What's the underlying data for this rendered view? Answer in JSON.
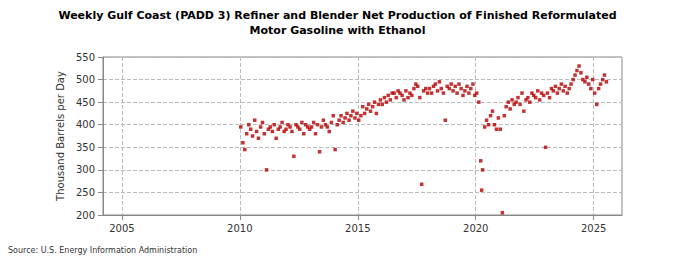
{
  "chart_data": {
    "type": "scatter",
    "title": "Weekly Gulf Coast (PADD 3) Refiner and Blender Net Production of Finished Reformulated\nMotor Gasoline with Ethanol",
    "y_label": "Thousand Barrels per Day",
    "annotation": "Source: U.S. Energy Information Administration",
    "color": "#b40000",
    "marker": "square",
    "grid": true,
    "xlim": [
      2004.2,
      2026.2
    ],
    "xticks": [
      2005,
      2010,
      2015,
      2020,
      2025
    ],
    "ylim": [
      200,
      550
    ],
    "yticks": [
      200,
      250,
      300,
      350,
      400,
      450,
      500,
      550
    ],
    "x": [
      2010.04,
      2010.13,
      2010.21,
      2010.29,
      2010.38,
      2010.46,
      2010.54,
      2010.63,
      2010.71,
      2010.79,
      2010.88,
      2010.96,
      2011.04,
      2011.13,
      2011.21,
      2011.29,
      2011.38,
      2011.46,
      2011.54,
      2011.63,
      2011.71,
      2011.79,
      2011.88,
      2011.96,
      2012.04,
      2012.13,
      2012.21,
      2012.29,
      2012.38,
      2012.46,
      2012.54,
      2012.63,
      2012.71,
      2012.79,
      2012.88,
      2012.96,
      2013.04,
      2013.13,
      2013.21,
      2013.29,
      2013.38,
      2013.46,
      2013.54,
      2013.63,
      2013.71,
      2013.79,
      2013.88,
      2013.96,
      2014.04,
      2014.13,
      2014.21,
      2014.29,
      2014.38,
      2014.46,
      2014.54,
      2014.63,
      2014.71,
      2014.79,
      2014.88,
      2014.96,
      2015.04,
      2015.13,
      2015.21,
      2015.29,
      2015.38,
      2015.46,
      2015.54,
      2015.63,
      2015.71,
      2015.79,
      2015.88,
      2015.96,
      2016.04,
      2016.13,
      2016.21,
      2016.29,
      2016.38,
      2016.46,
      2016.54,
      2016.63,
      2016.71,
      2016.79,
      2016.88,
      2016.96,
      2017.04,
      2017.13,
      2017.21,
      2017.29,
      2017.38,
      2017.46,
      2017.54,
      2017.63,
      2017.71,
      2017.79,
      2017.88,
      2017.96,
      2018.04,
      2018.13,
      2018.21,
      2018.29,
      2018.38,
      2018.46,
      2018.54,
      2018.63,
      2018.71,
      2018.79,
      2018.88,
      2018.96,
      2019.04,
      2019.13,
      2019.21,
      2019.29,
      2019.38,
      2019.46,
      2019.54,
      2019.63,
      2019.71,
      2019.79,
      2019.88,
      2019.96,
      2020.04,
      2020.13,
      2020.21,
      2020.25,
      2020.29,
      2020.38,
      2020.46,
      2020.54,
      2020.63,
      2020.71,
      2020.79,
      2020.88,
      2020.96,
      2021.04,
      2021.13,
      2021.21,
      2021.29,
      2021.38,
      2021.46,
      2021.54,
      2021.63,
      2021.71,
      2021.79,
      2021.88,
      2021.96,
      2022.04,
      2022.13,
      2022.21,
      2022.29,
      2022.38,
      2022.46,
      2022.54,
      2022.63,
      2022.71,
      2022.79,
      2022.88,
      2022.96,
      2023.04,
      2023.13,
      2023.21,
      2023.29,
      2023.38,
      2023.46,
      2023.54,
      2023.63,
      2023.71,
      2023.79,
      2023.88,
      2023.96,
      2024.04,
      2024.13,
      2024.21,
      2024.29,
      2024.38,
      2024.46,
      2024.54,
      2024.63,
      2024.71,
      2024.79,
      2024.88,
      2024.96,
      2025.04,
      2025.13,
      2025.21,
      2025.29,
      2025.38,
      2025.46,
      2025.54
    ],
    "values": [
      395,
      360,
      345,
      380,
      400,
      390,
      375,
      410,
      385,
      370,
      395,
      405,
      380,
      300,
      390,
      395,
      385,
      400,
      370,
      390,
      395,
      405,
      385,
      390,
      400,
      395,
      385,
      330,
      400,
      395,
      390,
      405,
      380,
      400,
      395,
      390,
      395,
      405,
      380,
      400,
      340,
      395,
      410,
      400,
      395,
      385,
      405,
      420,
      345,
      400,
      410,
      420,
      405,
      415,
      425,
      410,
      420,
      430,
      415,
      425,
      410,
      420,
      440,
      425,
      435,
      445,
      430,
      440,
      450,
      425,
      445,
      455,
      445,
      460,
      450,
      465,
      455,
      470,
      470,
      460,
      475,
      470,
      465,
      455,
      475,
      460,
      470,
      465,
      480,
      490,
      485,
      460,
      268,
      475,
      480,
      470,
      480,
      470,
      485,
      490,
      475,
      495,
      480,
      470,
      410,
      485,
      480,
      490,
      475,
      485,
      470,
      490,
      480,
      465,
      475,
      485,
      470,
      480,
      490,
      465,
      470,
      450,
      320,
      255,
      300,
      395,
      410,
      400,
      420,
      430,
      400,
      390,
      415,
      390,
      205,
      420,
      440,
      450,
      435,
      455,
      445,
      450,
      460,
      445,
      470,
      430,
      455,
      460,
      450,
      470,
      465,
      460,
      475,
      455,
      470,
      465,
      350,
      470,
      460,
      480,
      475,
      485,
      470,
      480,
      490,
      475,
      485,
      470,
      480,
      490,
      500,
      510,
      520,
      530,
      515,
      500,
      495,
      505,
      490,
      480,
      500,
      470,
      445,
      480,
      490,
      500,
      510,
      495
    ]
  }
}
